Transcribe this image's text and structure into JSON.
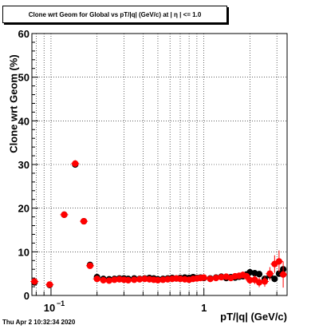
{
  "chart_data": {
    "type": "scatter",
    "title": "Clone wrt Geom for Global vs pT/|q| (GeV/c) at |  η | <= 1.0",
    "xlabel": "pT/|q| (GeV/c)",
    "ylabel": "Clone wrt Geom (%)",
    "x_scale": "log",
    "xlim": [
      0.075,
      3.5
    ],
    "ylim": [
      0,
      60
    ],
    "grid": true,
    "y_ticks": [
      "0",
      "10",
      "20",
      "30",
      "40",
      "50",
      "60"
    ],
    "x_ticks": [
      "10^-1",
      "1"
    ],
    "series": [
      {
        "color": "#000000",
        "x": [
          0.078,
          0.098,
          0.122,
          0.144,
          0.164,
          0.18,
          0.2,
          0.22,
          0.24,
          0.26,
          0.28,
          0.3,
          0.32,
          0.35,
          0.38,
          0.41,
          0.44,
          0.47,
          0.5,
          0.54,
          0.58,
          0.62,
          0.66,
          0.7,
          0.75,
          0.8,
          0.85,
          0.9,
          0.95,
          1.0,
          1.1,
          1.2,
          1.3,
          1.4,
          1.5,
          1.6,
          1.7,
          1.8,
          1.9,
          2.0,
          2.15,
          2.3,
          2.5,
          2.7,
          2.9,
          3.1,
          3.3
        ],
        "y": [
          3.0,
          2.4,
          18.5,
          30.0,
          17.0,
          7.0,
          4.2,
          3.8,
          3.7,
          3.8,
          3.9,
          3.9,
          3.8,
          3.9,
          3.8,
          3.9,
          4.0,
          3.9,
          3.7,
          3.8,
          3.9,
          4.0,
          3.9,
          4.0,
          4.1,
          4.0,
          4.2,
          4.0,
          4.1,
          4.0,
          3.9,
          4.1,
          4.3,
          4.0,
          4.2,
          4.1,
          4.3,
          4.4,
          4.8,
          5.3,
          5.1,
          4.9,
          3.8,
          4.6,
          3.8,
          5.0,
          6.0
        ]
      },
      {
        "color": "#ff0000",
        "x": [
          0.078,
          0.098,
          0.122,
          0.144,
          0.164,
          0.18,
          0.2,
          0.22,
          0.24,
          0.26,
          0.28,
          0.3,
          0.32,
          0.35,
          0.38,
          0.41,
          0.44,
          0.47,
          0.5,
          0.54,
          0.58,
          0.62,
          0.66,
          0.7,
          0.75,
          0.8,
          0.85,
          0.9,
          0.95,
          1.0,
          1.1,
          1.2,
          1.3,
          1.4,
          1.5,
          1.6,
          1.7,
          1.8,
          1.9,
          2.0,
          2.15,
          2.3,
          2.5,
          2.7,
          2.9,
          3.1,
          3.3
        ],
        "y": [
          3.2,
          2.5,
          18.5,
          30.2,
          17.0,
          6.8,
          3.8,
          3.5,
          3.4,
          3.6,
          3.7,
          3.6,
          3.5,
          3.6,
          3.7,
          3.8,
          3.7,
          3.6,
          3.5,
          3.6,
          3.7,
          3.8,
          3.9,
          3.8,
          3.7,
          3.6,
          3.8,
          3.9,
          4.0,
          4.1,
          3.8,
          4.0,
          4.2,
          4.3,
          4.0,
          4.4,
          4.5,
          4.7,
          4.4,
          3.5,
          3.6,
          3.0,
          3.2,
          5.0,
          7.2,
          7.8,
          4.8
        ],
        "y_err": [
          0.3,
          0.3,
          0.6,
          0.8,
          0.6,
          0.4,
          0.3,
          0.3,
          0.3,
          0.3,
          0.3,
          0.3,
          0.3,
          0.3,
          0.3,
          0.3,
          0.3,
          0.3,
          0.3,
          0.3,
          0.3,
          0.3,
          0.3,
          0.3,
          0.3,
          0.3,
          0.3,
          0.3,
          0.3,
          0.3,
          0.4,
          0.4,
          0.5,
          0.5,
          0.6,
          0.6,
          0.7,
          0.8,
          0.8,
          0.9,
          1.0,
          1.1,
          1.2,
          1.5,
          2.0,
          2.5,
          3.0
        ]
      }
    ]
  },
  "footer": {
    "timestamp": "Thu Apr  2 10:32:34 2020"
  }
}
